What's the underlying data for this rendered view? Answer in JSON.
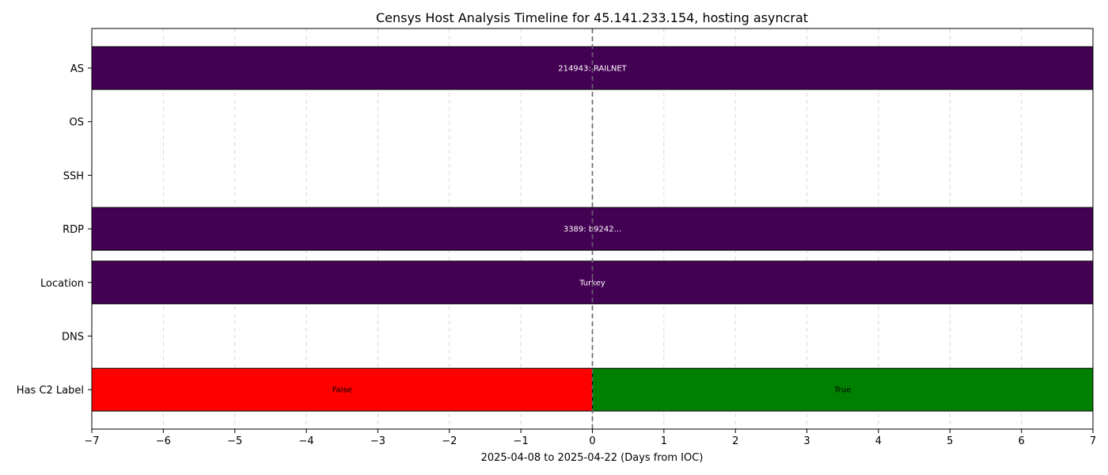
{
  "chart_data": {
    "type": "timeline",
    "title": "Censys Host Analysis Timeline for 45.141.233.154, hosting asyncrat",
    "xlabel": "2025-04-08 to 2025-04-22 (Days from IOC)",
    "ylabel": "",
    "xlim": [
      -7,
      7
    ],
    "x_ticks": [
      -7,
      -6,
      -5,
      -4,
      -3,
      -2,
      -1,
      0,
      1,
      2,
      3,
      4,
      5,
      6,
      7
    ],
    "x_tick_labels": [
      "−7",
      "−6",
      "−5",
      "−4",
      "−3",
      "−2",
      "−1",
      "0",
      "1",
      "2",
      "3",
      "4",
      "5",
      "6",
      "7"
    ],
    "grid": {
      "x": true,
      "y": false,
      "style": "dashed"
    },
    "reference_line": {
      "x": 0,
      "style": "dashed",
      "color": "#666666"
    },
    "categories": [
      "AS",
      "OS",
      "SSH",
      "RDP",
      "Location",
      "DNS",
      "Has C2 Label"
    ],
    "segments": [
      {
        "category": "AS",
        "start": -7,
        "end": 7,
        "label": "214943: RAILNET",
        "color": "#440154",
        "text_color": "#ffffff"
      },
      {
        "category": "RDP",
        "start": -7,
        "end": 7,
        "label": "3389: b9242...",
        "color": "#440154",
        "text_color": "#ffffff"
      },
      {
        "category": "Location",
        "start": -7,
        "end": 7,
        "label": "Turkey",
        "color": "#440154",
        "text_color": "#ffffff"
      },
      {
        "category": "Has C2 Label",
        "start": -7,
        "end": 0,
        "label": "False",
        "color": "#ff0000",
        "text_color": "#000000"
      },
      {
        "category": "Has C2 Label",
        "start": 0,
        "end": 7,
        "label": "True",
        "color": "#008000",
        "text_color": "#000000"
      }
    ]
  }
}
